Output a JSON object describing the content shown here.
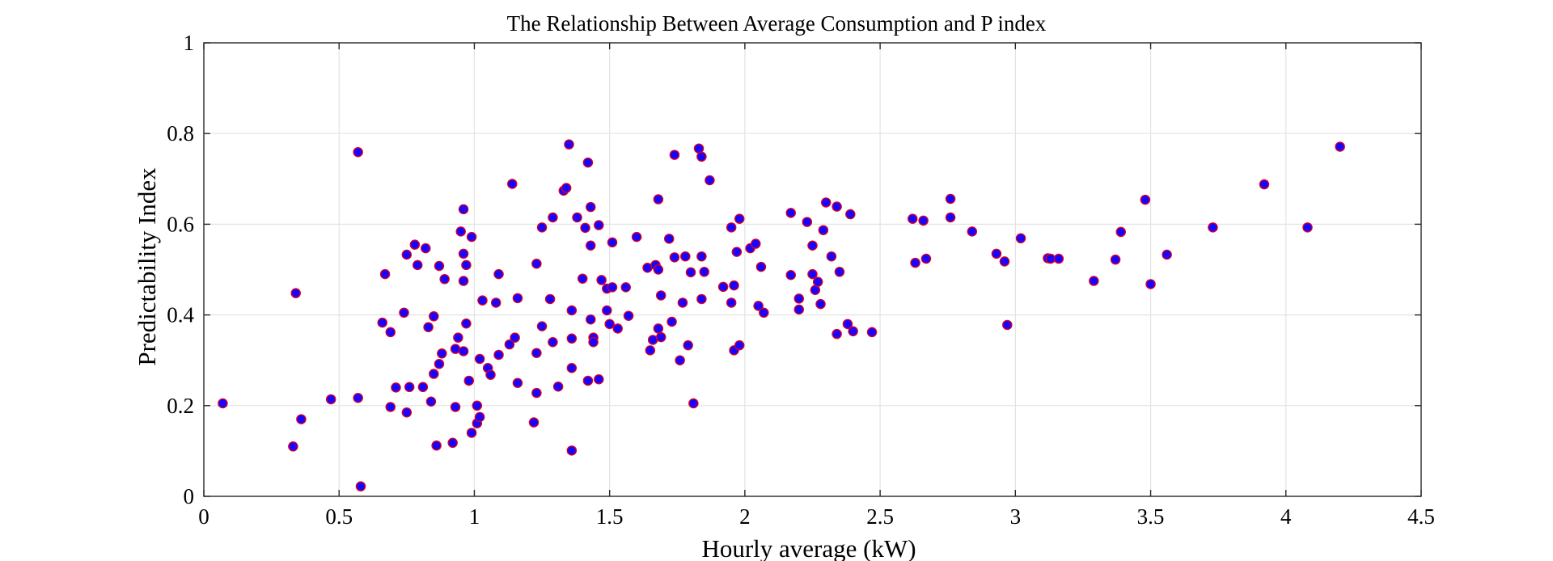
{
  "chart_data": {
    "type": "scatter",
    "title": "The Relationship Between Average Consumption and P index",
    "xlabel": "Hourly average (kW)",
    "ylabel": "Predictability Index",
    "xlim": [
      0,
      4.5
    ],
    "ylim": [
      0,
      1
    ],
    "xticks": [
      0,
      0.5,
      1,
      1.5,
      2,
      2.5,
      3,
      3.5,
      4,
      4.5
    ],
    "xtick_labels": [
      "0",
      "0.5",
      "1",
      "1.5",
      "2",
      "2.5",
      "3",
      "3.5",
      "4",
      "4.5"
    ],
    "yticks": [
      0,
      0.2,
      0.4,
      0.6,
      0.8,
      1
    ],
    "ytick_labels": [
      "0",
      "0.2",
      "0.4",
      "0.6",
      "0.8",
      "1"
    ],
    "grid": true,
    "marker": {
      "fill": "#1a00ff",
      "edge": "#e0001a"
    },
    "points": [
      [
        0.07,
        0.205
      ],
      [
        0.33,
        0.11
      ],
      [
        0.34,
        0.448
      ],
      [
        0.36,
        0.17
      ],
      [
        0.47,
        0.214
      ],
      [
        0.57,
        0.759
      ],
      [
        0.57,
        0.217
      ],
      [
        0.58,
        0.022
      ],
      [
        0.66,
        0.383
      ],
      [
        0.67,
        0.49
      ],
      [
        0.69,
        0.362
      ],
      [
        0.69,
        0.197
      ],
      [
        0.71,
        0.24
      ],
      [
        0.74,
        0.405
      ],
      [
        0.75,
        0.185
      ],
      [
        0.75,
        0.533
      ],
      [
        0.76,
        0.241
      ],
      [
        0.78,
        0.555
      ],
      [
        0.79,
        0.51
      ],
      [
        0.81,
        0.241
      ],
      [
        0.82,
        0.547
      ],
      [
        0.83,
        0.373
      ],
      [
        0.84,
        0.209
      ],
      [
        0.85,
        0.27
      ],
      [
        0.85,
        0.397
      ],
      [
        0.86,
        0.112
      ],
      [
        0.87,
        0.292
      ],
      [
        0.87,
        0.508
      ],
      [
        0.88,
        0.315
      ],
      [
        0.89,
        0.479
      ],
      [
        0.92,
        0.118
      ],
      [
        0.93,
        0.325
      ],
      [
        0.93,
        0.197
      ],
      [
        0.94,
        0.35
      ],
      [
        0.95,
        0.584
      ],
      [
        0.96,
        0.475
      ],
      [
        0.96,
        0.32
      ],
      [
        0.96,
        0.633
      ],
      [
        0.96,
        0.535
      ],
      [
        0.97,
        0.381
      ],
      [
        0.97,
        0.51
      ],
      [
        0.98,
        0.255
      ],
      [
        0.99,
        0.572
      ],
      [
        0.99,
        0.14
      ],
      [
        1.01,
        0.2
      ],
      [
        1.01,
        0.161
      ],
      [
        1.02,
        0.175
      ],
      [
        1.02,
        0.303
      ],
      [
        1.03,
        0.432
      ],
      [
        1.05,
        0.283
      ],
      [
        1.06,
        0.268
      ],
      [
        1.08,
        0.427
      ],
      [
        1.09,
        0.312
      ],
      [
        1.09,
        0.49
      ],
      [
        1.13,
        0.335
      ],
      [
        1.14,
        0.689
      ],
      [
        1.15,
        0.35
      ],
      [
        1.16,
        0.437
      ],
      [
        1.16,
        0.25
      ],
      [
        1.22,
        0.163
      ],
      [
        1.23,
        0.513
      ],
      [
        1.23,
        0.228
      ],
      [
        1.23,
        0.316
      ],
      [
        1.25,
        0.375
      ],
      [
        1.25,
        0.593
      ],
      [
        1.28,
        0.435
      ],
      [
        1.29,
        0.615
      ],
      [
        1.29,
        0.34
      ],
      [
        1.31,
        0.242
      ],
      [
        1.33,
        0.674
      ],
      [
        1.34,
        0.68
      ],
      [
        1.35,
        0.776
      ],
      [
        1.36,
        0.41
      ],
      [
        1.36,
        0.101
      ],
      [
        1.36,
        0.348
      ],
      [
        1.36,
        0.283
      ],
      [
        1.38,
        0.615
      ],
      [
        1.4,
        0.48
      ],
      [
        1.41,
        0.592
      ],
      [
        1.42,
        0.736
      ],
      [
        1.42,
        0.255
      ],
      [
        1.43,
        0.39
      ],
      [
        1.43,
        0.638
      ],
      [
        1.43,
        0.553
      ],
      [
        1.44,
        0.35
      ],
      [
        1.44,
        0.34
      ],
      [
        1.46,
        0.598
      ],
      [
        1.46,
        0.258
      ],
      [
        1.47,
        0.477
      ],
      [
        1.49,
        0.458
      ],
      [
        1.49,
        0.41
      ],
      [
        1.5,
        0.38
      ],
      [
        1.51,
        0.461
      ],
      [
        1.51,
        0.56
      ],
      [
        1.53,
        0.37
      ],
      [
        1.56,
        0.461
      ],
      [
        1.57,
        0.398
      ],
      [
        1.6,
        0.572
      ],
      [
        1.64,
        0.504
      ],
      [
        1.65,
        0.322
      ],
      [
        1.66,
        0.345
      ],
      [
        1.67,
        0.51
      ],
      [
        1.68,
        0.655
      ],
      [
        1.68,
        0.37
      ],
      [
        1.68,
        0.5
      ],
      [
        1.69,
        0.351
      ],
      [
        1.69,
        0.443
      ],
      [
        1.72,
        0.568
      ],
      [
        1.73,
        0.385
      ],
      [
        1.74,
        0.527
      ],
      [
        1.74,
        0.753
      ],
      [
        1.76,
        0.3
      ],
      [
        1.77,
        0.427
      ],
      [
        1.78,
        0.529
      ],
      [
        1.79,
        0.333
      ],
      [
        1.8,
        0.494
      ],
      [
        1.81,
        0.205
      ],
      [
        1.83,
        0.767
      ],
      [
        1.84,
        0.529
      ],
      [
        1.84,
        0.749
      ],
      [
        1.84,
        0.435
      ],
      [
        1.85,
        0.495
      ],
      [
        1.87,
        0.697
      ],
      [
        1.92,
        0.462
      ],
      [
        1.95,
        0.593
      ],
      [
        1.95,
        0.427
      ],
      [
        1.96,
        0.465
      ],
      [
        1.96,
        0.322
      ],
      [
        1.97,
        0.539
      ],
      [
        1.98,
        0.612
      ],
      [
        1.98,
        0.333
      ],
      [
        2.02,
        0.547
      ],
      [
        2.04,
        0.557
      ],
      [
        2.05,
        0.42
      ],
      [
        2.06,
        0.506
      ],
      [
        2.07,
        0.405
      ],
      [
        2.17,
        0.488
      ],
      [
        2.17,
        0.625
      ],
      [
        2.2,
        0.412
      ],
      [
        2.2,
        0.436
      ],
      [
        2.23,
        0.605
      ],
      [
        2.25,
        0.49
      ],
      [
        2.25,
        0.553
      ],
      [
        2.26,
        0.455
      ],
      [
        2.27,
        0.473
      ],
      [
        2.28,
        0.424
      ],
      [
        2.29,
        0.587
      ],
      [
        2.3,
        0.648
      ],
      [
        2.32,
        0.529
      ],
      [
        2.34,
        0.358
      ],
      [
        2.34,
        0.639
      ],
      [
        2.35,
        0.495
      ],
      [
        2.38,
        0.38
      ],
      [
        2.39,
        0.622
      ],
      [
        2.4,
        0.364
      ],
      [
        2.47,
        0.362
      ],
      [
        2.62,
        0.612
      ],
      [
        2.63,
        0.515
      ],
      [
        2.66,
        0.608
      ],
      [
        2.67,
        0.524
      ],
      [
        2.76,
        0.656
      ],
      [
        2.76,
        0.615
      ],
      [
        2.84,
        0.584
      ],
      [
        2.93,
        0.535
      ],
      [
        2.96,
        0.518
      ],
      [
        2.97,
        0.378
      ],
      [
        3.02,
        0.569
      ],
      [
        3.12,
        0.525
      ],
      [
        3.13,
        0.524
      ],
      [
        3.16,
        0.524
      ],
      [
        3.29,
        0.475
      ],
      [
        3.37,
        0.522
      ],
      [
        3.39,
        0.583
      ],
      [
        3.48,
        0.654
      ],
      [
        3.5,
        0.468
      ],
      [
        3.56,
        0.533
      ],
      [
        3.73,
        0.593
      ],
      [
        3.92,
        0.688
      ],
      [
        4.08,
        0.593
      ],
      [
        4.2,
        0.771
      ]
    ]
  }
}
